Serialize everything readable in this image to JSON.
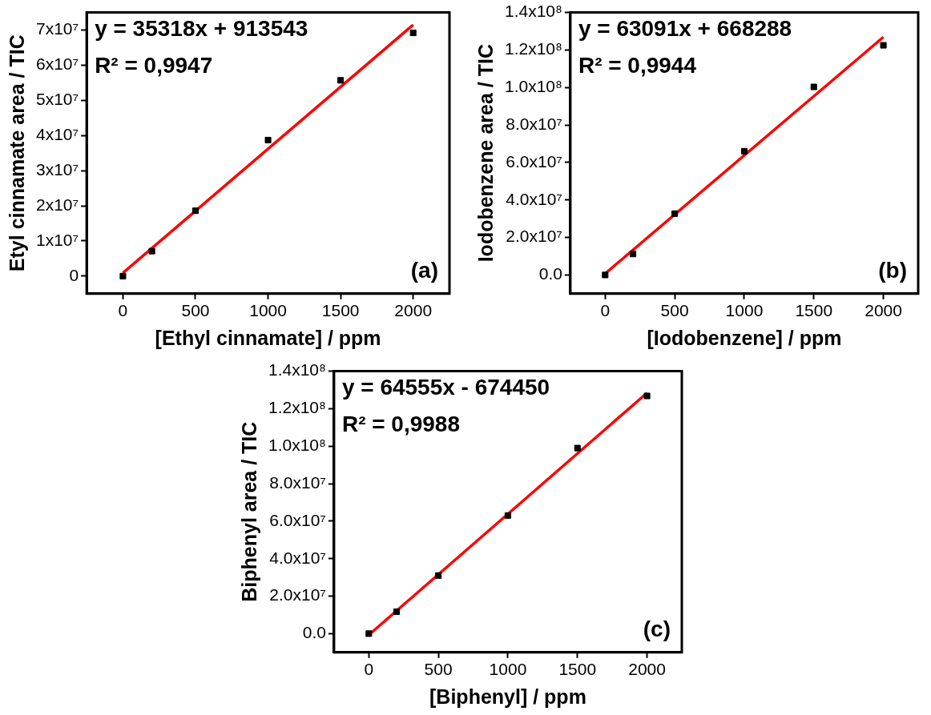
{
  "chart_data": [
    {
      "type": "scatter",
      "xlabel": "[Ethyl cinnamate] / ppm",
      "ylabel": "Etyl cinnamate area / TIC",
      "legend": false,
      "xlim": [
        -250,
        2250
      ],
      "xticks": [
        0,
        500,
        1000,
        1500,
        2000
      ],
      "ylim": [
        -5000000,
        75000000
      ],
      "yticks": [
        {
          "value": 0,
          "label": "0"
        },
        {
          "value": 10000000,
          "label": "1x10⁷"
        },
        {
          "value": 20000000,
          "label": "2x10⁷"
        },
        {
          "value": 30000000,
          "label": "3x10⁷"
        },
        {
          "value": 40000000,
          "label": "4x10⁷"
        },
        {
          "value": 50000000,
          "label": "5x10⁷"
        },
        {
          "value": 60000000,
          "label": "6x10⁷"
        },
        {
          "value": 70000000,
          "label": "7x10⁷"
        }
      ],
      "series": [
        {
          "marker": "square",
          "color": "#000000",
          "x": [
            0,
            200,
            500,
            1000,
            1500,
            2000
          ],
          "values": [
            0,
            7100000,
            18600000,
            38700000,
            55700000,
            69200000
          ]
        },
        {
          "type": "line",
          "marker": "none",
          "color": "#ff0000",
          "x": [
            0,
            2000
          ],
          "values": [
            900000,
            71500000
          ]
        }
      ],
      "annotations": [
        "y = 35318x + 913543",
        "R² = 0,9947",
        "(a)"
      ]
    },
    {
      "type": "scatter",
      "xlabel": "[Iodobenzene] / ppm",
      "ylabel": "Iodobenzene area / TIC",
      "legend": false,
      "xlim": [
        -250,
        2250
      ],
      "xticks": [
        0,
        500,
        1000,
        1500,
        2000
      ],
      "ylim": [
        -10000000,
        140000000
      ],
      "yticks": [
        {
          "value": 0,
          "label": "0.0"
        },
        {
          "value": 20000000,
          "label": "2.0x10⁷"
        },
        {
          "value": 40000000,
          "label": "4.0x10⁷"
        },
        {
          "value": 60000000,
          "label": "6.0x10⁷"
        },
        {
          "value": 80000000,
          "label": "8.0x10⁷"
        },
        {
          "value": 100000000,
          "label": "1.0x10⁸"
        },
        {
          "value": 120000000,
          "label": "1.2x10⁸"
        },
        {
          "value": 140000000,
          "label": "1.4x10⁸"
        }
      ],
      "series": [
        {
          "marker": "square",
          "color": "#000000",
          "x": [
            0,
            200,
            500,
            1000,
            1500,
            2000
          ],
          "values": [
            0,
            11200000,
            32700000,
            66000000,
            100300000,
            122500000
          ]
        },
        {
          "type": "line",
          "marker": "none",
          "color": "#ff0000",
          "x": [
            0,
            2000
          ],
          "values": [
            700000,
            126900000
          ]
        }
      ],
      "annotations": [
        "y = 63091x + 668288",
        "R² = 0,9944",
        "(b)"
      ]
    },
    {
      "type": "scatter",
      "xlabel": "[Biphenyl] / ppm",
      "ylabel": "Biphenyl area / TIC",
      "legend": false,
      "xlim": [
        -250,
        2250
      ],
      "xticks": [
        0,
        500,
        1000,
        1500,
        2000
      ],
      "ylim": [
        -10000000,
        140000000
      ],
      "yticks": [
        {
          "value": 0,
          "label": "0.0"
        },
        {
          "value": 20000000,
          "label": "2.0x10⁷"
        },
        {
          "value": 40000000,
          "label": "4.0x10⁷"
        },
        {
          "value": 60000000,
          "label": "6.0x10⁷"
        },
        {
          "value": 80000000,
          "label": "8.0x10⁷"
        },
        {
          "value": 100000000,
          "label": "1.0x10⁸"
        },
        {
          "value": 120000000,
          "label": "1.2x10⁸"
        },
        {
          "value": 140000000,
          "label": "1.4x10⁸"
        }
      ],
      "series": [
        {
          "marker": "square",
          "color": "#000000",
          "x": [
            0,
            200,
            500,
            1000,
            1500,
            2000
          ],
          "values": [
            0,
            11700000,
            31000000,
            63000000,
            99000000,
            126800000
          ]
        },
        {
          "type": "line",
          "marker": "none",
          "color": "#ff0000",
          "x": [
            0,
            2000
          ],
          "values": [
            -700000,
            128400000
          ]
        }
      ],
      "annotations": [
        "y = 64555x - 674450",
        "R² = 0,9988",
        "(c)"
      ]
    }
  ]
}
